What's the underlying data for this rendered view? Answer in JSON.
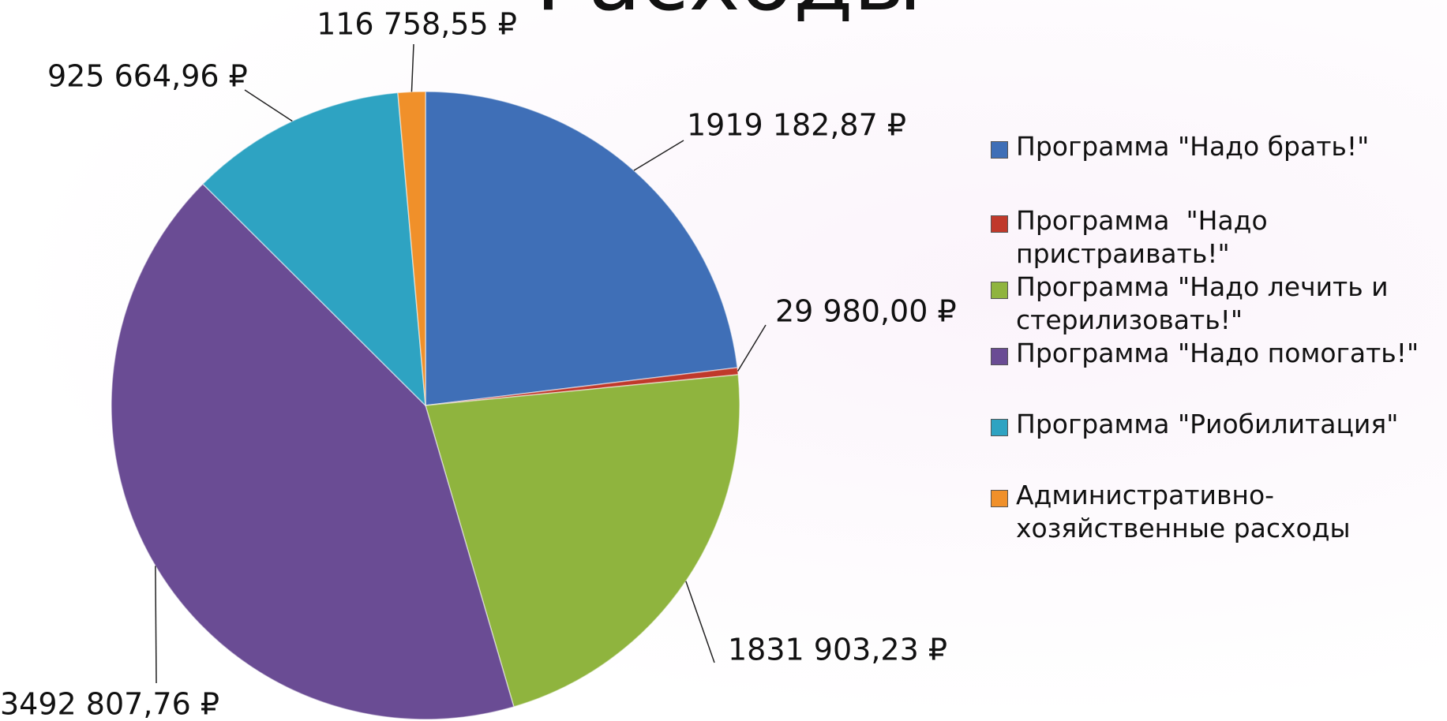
{
  "chart_data": {
    "type": "pie",
    "title": "Расходы",
    "categories": [
      "Программа \"Надо брать!\"",
      "Программа  \"Надо пристраивать!\"",
      "Программа \"Надо лечить и стерилизовать!\"",
      "Программа \"Надо помогать!\"",
      "Программа \"Риобилитация\"",
      "Административно-хозяйственные расходы"
    ],
    "values": [
      1919182.87,
      29980.0,
      1831903.23,
      3492807.76,
      925664.96,
      116758.55
    ],
    "value_labels": [
      "1919 182,87 ₽",
      "29 980,00 ₽",
      "1831 903,23 ₽",
      "3492 807,76 ₽",
      "925 664,96 ₽",
      "116 758,55 ₽"
    ],
    "colors": [
      "#3f6fb7",
      "#c0392b",
      "#8fb43e",
      "#6a4c94",
      "#2ea3c2",
      "#f0902a"
    ],
    "legend": "right"
  }
}
